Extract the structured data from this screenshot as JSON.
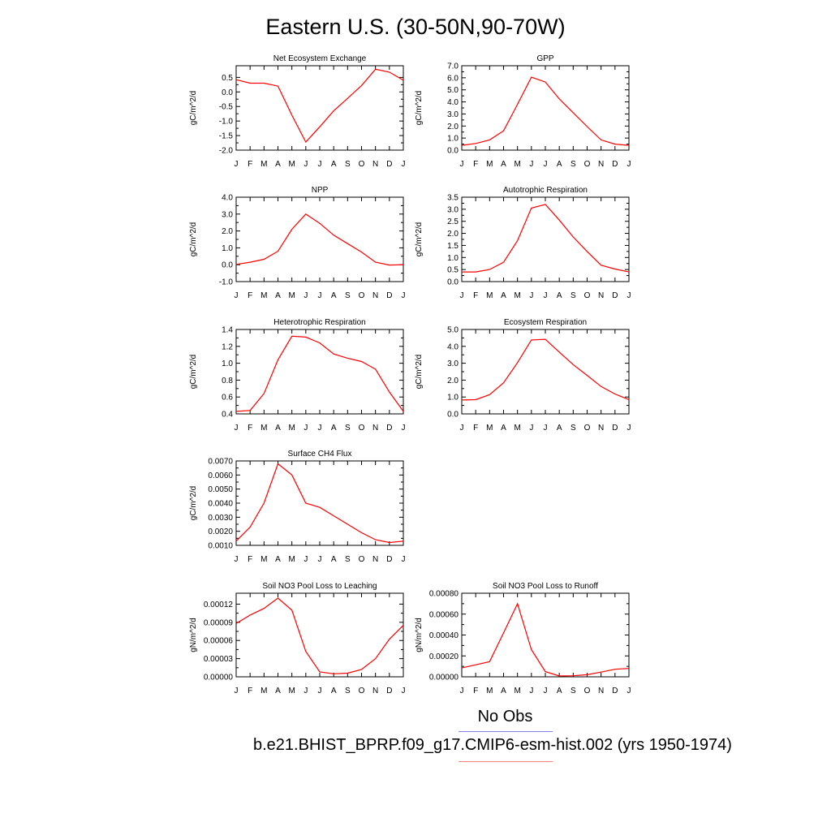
{
  "title": "Eastern U.S. (30-50N,90-70W)",
  "legend": {
    "obs_label": "No Obs",
    "obs_color": "#8080ee",
    "model_label": "b.e21.BHIST_BPRP.f09_g17.CMIP6-esm-hist.002 (yrs 1950-1974)",
    "model_color": "#ff8080"
  },
  "line_color": "#ff0000",
  "chart_data": [
    {
      "type": "line",
      "title": "Net Ecosystem Exchange",
      "ylabel": "gC/m^2/d",
      "x": [
        "J",
        "F",
        "M",
        "A",
        "M",
        "J",
        "J",
        "A",
        "S",
        "O",
        "N",
        "D",
        "J"
      ],
      "values": [
        0.42,
        0.3,
        0.3,
        0.2,
        -0.8,
        -1.72,
        -1.2,
        -0.65,
        -0.22,
        0.22,
        0.78,
        0.68,
        0.4
      ],
      "ylim": [
        -2.0,
        0.9
      ],
      "yticks": [
        -2.0,
        -1.5,
        -1.0,
        -0.5,
        0.0,
        0.5
      ],
      "ytick_labels": [
        "-2.0",
        "-1.5",
        "-1.0",
        "-0.5",
        "0.0",
        "0.5"
      ]
    },
    {
      "type": "line",
      "title": "GPP",
      "ylabel": "gC/m^2/d",
      "x": [
        "J",
        "F",
        "M",
        "A",
        "M",
        "J",
        "J",
        "A",
        "S",
        "O",
        "N",
        "D",
        "J"
      ],
      "values": [
        0.4,
        0.55,
        0.85,
        1.6,
        3.8,
        6.05,
        5.65,
        4.25,
        3.1,
        1.95,
        0.85,
        0.5,
        0.4
      ],
      "ylim": [
        0.0,
        7.0
      ],
      "yticks": [
        0.0,
        1.0,
        2.0,
        3.0,
        4.0,
        5.0,
        6.0,
        7.0
      ],
      "ytick_labels": [
        "0.0",
        "1.0",
        "2.0",
        "3.0",
        "4.0",
        "5.0",
        "6.0",
        "7.0"
      ]
    },
    {
      "type": "line",
      "title": "NPP",
      "ylabel": "gC/m^2/d",
      "x": [
        "J",
        "F",
        "M",
        "A",
        "M",
        "J",
        "J",
        "A",
        "S",
        "O",
        "N",
        "D",
        "J"
      ],
      "values": [
        0.02,
        0.15,
        0.32,
        0.8,
        2.1,
        3.0,
        2.45,
        1.75,
        1.25,
        0.75,
        0.15,
        -0.02,
        0.0
      ],
      "ylim": [
        -1.0,
        4.0
      ],
      "yticks": [
        -1.0,
        0.0,
        1.0,
        2.0,
        3.0,
        4.0
      ],
      "ytick_labels": [
        "-1.0",
        "0.0",
        "1.0",
        "2.0",
        "3.0",
        "4.0"
      ]
    },
    {
      "type": "line",
      "title": "Autotrophic Respiration",
      "ylabel": "gC/m^2/d",
      "x": [
        "J",
        "F",
        "M",
        "A",
        "M",
        "J",
        "J",
        "A",
        "S",
        "O",
        "N",
        "D",
        "J"
      ],
      "values": [
        0.4,
        0.4,
        0.5,
        0.8,
        1.7,
        3.05,
        3.2,
        2.55,
        1.85,
        1.25,
        0.68,
        0.52,
        0.4
      ],
      "ylim": [
        0.0,
        3.5
      ],
      "yticks": [
        0.0,
        0.5,
        1.0,
        1.5,
        2.0,
        2.5,
        3.0,
        3.5
      ],
      "ytick_labels": [
        "0.0",
        "0.5",
        "1.0",
        "1.5",
        "2.0",
        "2.5",
        "3.0",
        "3.5"
      ]
    },
    {
      "type": "line",
      "title": "Heterotrophic Respiration",
      "ylabel": "gC/m^2/d",
      "x": [
        "J",
        "F",
        "M",
        "A",
        "M",
        "J",
        "J",
        "A",
        "S",
        "O",
        "N",
        "D",
        "J"
      ],
      "values": [
        0.43,
        0.44,
        0.64,
        1.04,
        1.32,
        1.31,
        1.24,
        1.11,
        1.06,
        1.02,
        0.93,
        0.66,
        0.43
      ],
      "ylim": [
        0.4,
        1.4
      ],
      "yticks": [
        0.4,
        0.6,
        0.8,
        1.0,
        1.2,
        1.4
      ],
      "ytick_labels": [
        "0.4",
        "0.6",
        "0.8",
        "1.0",
        "1.2",
        "1.4"
      ]
    },
    {
      "type": "line",
      "title": "Ecosystem Respiration",
      "ylabel": "gC/m^2/d",
      "x": [
        "J",
        "F",
        "M",
        "A",
        "M",
        "J",
        "J",
        "A",
        "S",
        "O",
        "N",
        "D",
        "J"
      ],
      "values": [
        0.82,
        0.84,
        1.14,
        1.84,
        3.04,
        4.38,
        4.42,
        3.66,
        2.92,
        2.28,
        1.62,
        1.18,
        0.84
      ],
      "ylim": [
        0.0,
        5.0
      ],
      "yticks": [
        0.0,
        1.0,
        2.0,
        3.0,
        4.0,
        5.0
      ],
      "ytick_labels": [
        "0.0",
        "1.0",
        "2.0",
        "3.0",
        "4.0",
        "5.0"
      ]
    },
    {
      "type": "line",
      "title": "Surface CH4 Flux",
      "ylabel": "gC/m^2/d",
      "x": [
        "J",
        "F",
        "M",
        "A",
        "M",
        "J",
        "J",
        "A",
        "S",
        "O",
        "N",
        "D",
        "J"
      ],
      "values": [
        0.0013,
        0.0023,
        0.004,
        0.0068,
        0.006,
        0.004,
        0.0037,
        0.0031,
        0.0025,
        0.0019,
        0.0014,
        0.0012,
        0.0013
      ],
      "ylim": [
        0.001,
        0.007
      ],
      "yticks": [
        0.001,
        0.002,
        0.003,
        0.004,
        0.005,
        0.006,
        0.007
      ],
      "ytick_labels": [
        "0.0010",
        "0.0020",
        "0.0030",
        "0.0040",
        "0.0050",
        "0.0060",
        "0.0070"
      ]
    },
    {
      "type": "line",
      "title": "Soil NO3 Pool Loss to Leaching",
      "ylabel": "gN/m^2/d",
      "x": [
        "J",
        "F",
        "M",
        "A",
        "M",
        "J",
        "J",
        "A",
        "S",
        "O",
        "N",
        "D",
        "J"
      ],
      "values": [
        8.8e-05,
        0.000102,
        0.000113,
        0.00013,
        0.00011,
        4.2e-05,
        8e-06,
        5e-06,
        6e-06,
        1.2e-05,
        3e-05,
        6.2e-05,
        8.5e-05
      ],
      "ylim": [
        0.0,
        0.000138
      ],
      "yticks": [
        0.0,
        3e-05,
        6e-05,
        9e-05,
        0.00012
      ],
      "ytick_labels": [
        "0.00000",
        "0.00003",
        "0.00006",
        "0.00009",
        "0.00012"
      ]
    },
    {
      "type": "line",
      "title": "Soil NO3 Pool Loss to Runoff",
      "ylabel": "gN/m^2/d",
      "x": [
        "J",
        "F",
        "M",
        "A",
        "M",
        "J",
        "J",
        "A",
        "S",
        "O",
        "N",
        "D",
        "J"
      ],
      "values": [
        8.5e-05,
        0.000115,
        0.000145,
        0.00042,
        0.0007,
        0.00026,
        5e-05,
        8e-06,
        1e-05,
        2e-05,
        4.5e-05,
        7.2e-05,
        8e-05
      ],
      "ylim": [
        0.0,
        0.0008
      ],
      "yticks": [
        0.0,
        0.0002,
        0.0004,
        0.0006,
        0.0008
      ],
      "ytick_labels": [
        "0.00000",
        "0.00020",
        "0.00040",
        "0.00060",
        "0.00080"
      ]
    }
  ]
}
